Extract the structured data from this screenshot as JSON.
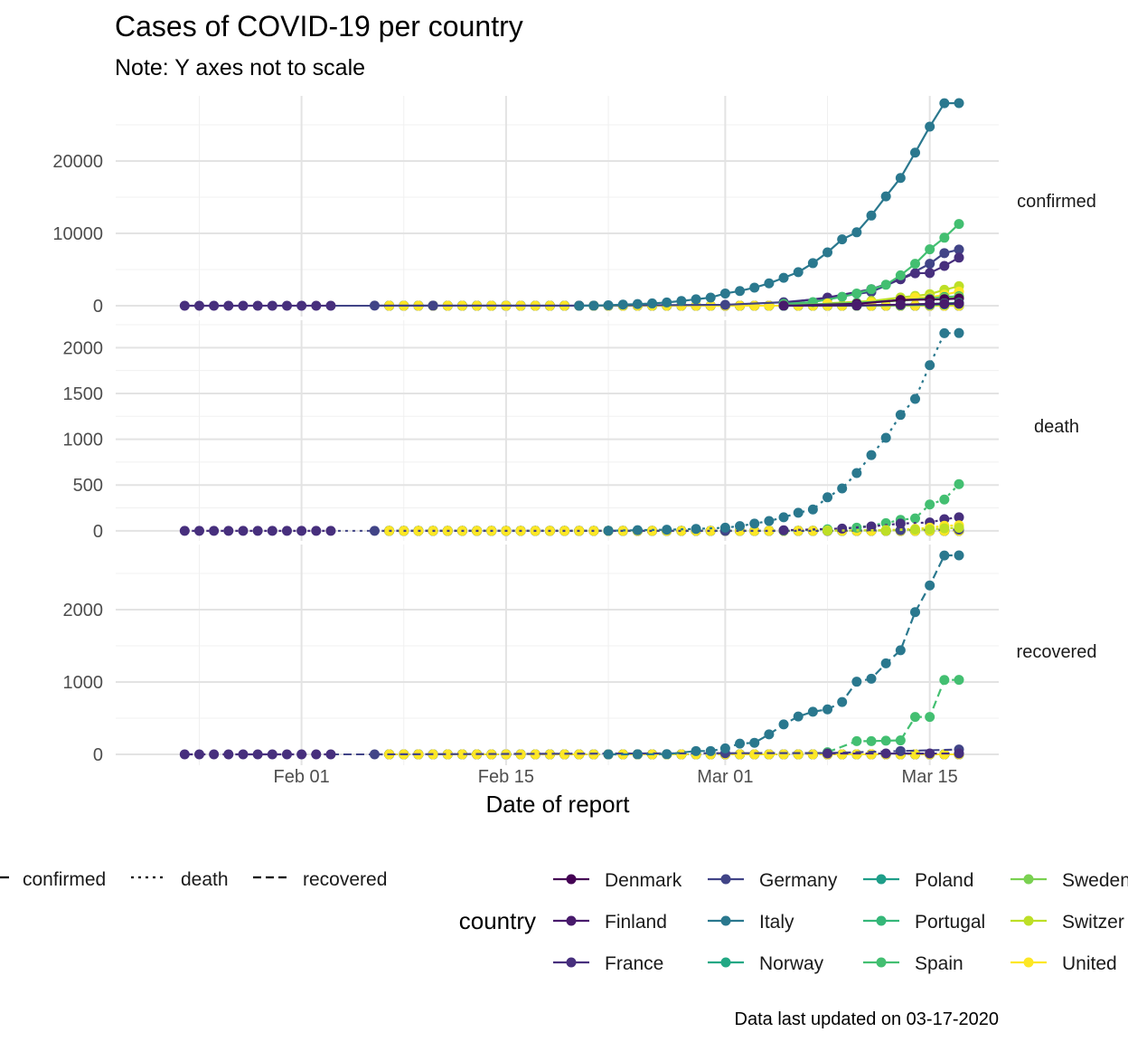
{
  "chart_data": {
    "type": "line",
    "title": "Cases of COVID-19 per country",
    "subtitle": "Note: Y axes not to scale",
    "xlabel": "Date of report",
    "caption": "Data last updated on 03-17-2020",
    "x_tick_labels": [
      {
        "date": "2020-02-01",
        "label": "Feb 01"
      },
      {
        "date": "2020-02-15",
        "label": "Feb 15"
      },
      {
        "date": "2020-03-01",
        "label": "Mar 01"
      },
      {
        "date": "2020-03-15",
        "label": "Mar 15"
      }
    ],
    "xlim": [
      "2020-01-22",
      "2020-03-17"
    ],
    "linetype_legend": [
      {
        "key": "confirmed",
        "label": "confirmed",
        "dash": "solid"
      },
      {
        "key": "death",
        "label": "death",
        "dash": "dotted"
      },
      {
        "key": "recovered",
        "label": "recovered",
        "dash": "dashed"
      }
    ],
    "color_legend_title": "country",
    "countries": [
      {
        "name": "Denmark",
        "color": "#440154"
      },
      {
        "name": "Finland",
        "color": "#481a6c"
      },
      {
        "name": "France",
        "color": "#472f7d"
      },
      {
        "name": "Germany",
        "color": "#414487"
      },
      {
        "name": "Italy",
        "color": "#2a788e"
      },
      {
        "name": "Norway",
        "color": "#22a884"
      },
      {
        "name": "Poland",
        "color": "#1f9e89"
      },
      {
        "name": "Portugal",
        "color": "#35b779"
      },
      {
        "name": "Spain",
        "color": "#43bf71"
      },
      {
        "name": "Sweden",
        "color": "#7ad151"
      },
      {
        "name": "Switzer",
        "color": "#bddf26"
      },
      {
        "name": "United",
        "color": "#fde725"
      }
    ],
    "facets": [
      {
        "key": "confirmed",
        "label": "confirmed",
        "dash": "solid",
        "ylim": [
          -1500,
          29000
        ],
        "y_ticks": [
          0,
          10000,
          20000
        ],
        "series": [
          {
            "country": "France",
            "x": [
              "2020-01-24",
              "2020-01-25",
              "2020-01-26",
              "2020-01-27",
              "2020-01-28",
              "2020-01-29",
              "2020-01-30",
              "2020-01-31",
              "2020-02-01",
              "2020-02-02",
              "2020-02-03"
            ],
            "y": [
              2,
              3,
              3,
              3,
              4,
              5,
              5,
              5,
              6,
              6,
              6
            ]
          },
          {
            "country": "Germany",
            "x": [
              "2020-02-06",
              "2020-02-10",
              "2020-02-20",
              "2020-03-01",
              "2020-03-05",
              "2020-03-08",
              "2020-03-11",
              "2020-03-13",
              "2020-03-15",
              "2020-03-16",
              "2020-03-17"
            ],
            "y": [
              12,
              14,
              16,
              130,
              482,
              1040,
              1908,
              3675,
              5795,
              7272,
              7760
            ]
          },
          {
            "country": "Italy",
            "x": [
              "2020-02-20",
              "2020-02-21",
              "2020-02-22",
              "2020-02-23",
              "2020-02-24",
              "2020-02-25",
              "2020-02-26",
              "2020-02-27",
              "2020-02-28",
              "2020-02-29",
              "2020-03-01",
              "2020-03-02",
              "2020-03-03",
              "2020-03-04",
              "2020-03-05",
              "2020-03-06",
              "2020-03-07",
              "2020-03-08",
              "2020-03-09",
              "2020-03-10",
              "2020-03-11",
              "2020-03-12",
              "2020-03-13",
              "2020-03-14",
              "2020-03-15",
              "2020-03-16",
              "2020-03-17"
            ],
            "y": [
              3,
              20,
              62,
              155,
              229,
              322,
              453,
              655,
              888,
              1128,
              1694,
              2036,
              2502,
              3089,
              3858,
              4636,
              5883,
              7375,
              9172,
              10149,
              12462,
              15113,
              17660,
              21157,
              24747,
              27980,
              28000
            ]
          },
          {
            "country": "France",
            "x": [
              "2020-03-05",
              "2020-03-08",
              "2020-03-11",
              "2020-03-13",
              "2020-03-14",
              "2020-03-15",
              "2020-03-16",
              "2020-03-17"
            ],
            "y": [
              377,
              1126,
              2284,
              3661,
              4480,
              4523,
              5500,
              6650
            ]
          },
          {
            "country": "Spain",
            "x": [
              "2020-03-05",
              "2020-03-07",
              "2020-03-09",
              "2020-03-10",
              "2020-03-11",
              "2020-03-12",
              "2020-03-13",
              "2020-03-14",
              "2020-03-15",
              "2020-03-16",
              "2020-03-17"
            ],
            "y": [
              261,
              500,
              1231,
              1695,
              2277,
              2900,
              4200,
              5800,
              7800,
              9400,
              11300
            ]
          },
          {
            "country": "Switzer",
            "x": [
              "2020-03-08",
              "2020-03-11",
              "2020-03-13",
              "2020-03-14",
              "2020-03-15",
              "2020-03-16",
              "2020-03-17"
            ],
            "y": [
              337,
              652,
              1139,
              1359,
              1600,
              2200,
              2700
            ]
          },
          {
            "country": "United",
            "x": [
              "2020-03-08",
              "2020-03-11",
              "2020-03-13",
              "2020-03-14",
              "2020-03-15",
              "2020-03-16",
              "2020-03-17"
            ],
            "y": [
              273,
              460,
              798,
              1140,
              1140,
              1543,
              1950
            ]
          },
          {
            "country": "Norway",
            "x": [
              "2020-03-05",
              "2020-03-10",
              "2020-03-13",
              "2020-03-15",
              "2020-03-16",
              "2020-03-17"
            ],
            "y": [
              50,
              400,
              750,
              1000,
              1200,
              1300
            ]
          },
          {
            "country": "Sweden",
            "x": [
              "2020-03-05",
              "2020-03-10",
              "2020-03-13",
              "2020-03-15",
              "2020-03-16",
              "2020-03-17"
            ],
            "y": [
              60,
              350,
              700,
              950,
              1100,
              1200
            ]
          },
          {
            "country": "Denmark",
            "x": [
              "2020-03-05",
              "2020-03-10",
              "2020-03-13",
              "2020-03-15",
              "2020-03-16",
              "2020-03-17"
            ],
            "y": [
              20,
              260,
              800,
              860,
              900,
              1000
            ]
          },
          {
            "country": "Portugal",
            "x": [
              "2020-03-05",
              "2020-03-10",
              "2020-03-13",
              "2020-03-15",
              "2020-03-16",
              "2020-03-17"
            ],
            "y": [
              5,
              40,
              120,
              250,
              330,
              400
            ]
          },
          {
            "country": "Poland",
            "x": [
              "2020-03-05",
              "2020-03-10",
              "2020-03-13",
              "2020-03-15",
              "2020-03-16",
              "2020-03-17"
            ],
            "y": [
              1,
              20,
              70,
              120,
              180,
              250
            ]
          },
          {
            "country": "Finland",
            "x": [
              "2020-03-05",
              "2020-03-10",
              "2020-03-13",
              "2020-03-15",
              "2020-03-16",
              "2020-03-17"
            ],
            "y": [
              10,
              40,
              150,
              240,
              270,
              320
            ]
          }
        ]
      },
      {
        "key": "death",
        "label": "death",
        "dash": "dotted",
        "ylim": [
          -110,
          2300
        ],
        "y_ticks": [
          0,
          500,
          1000,
          1500,
          2000
        ],
        "series": [
          {
            "country": "France",
            "x": [
              "2020-01-24",
              "2020-01-25",
              "2020-01-26",
              "2020-01-27",
              "2020-01-28",
              "2020-01-29",
              "2020-01-30",
              "2020-01-31",
              "2020-02-01",
              "2020-02-02",
              "2020-02-03"
            ],
            "y": [
              0,
              0,
              0,
              0,
              0,
              0,
              0,
              0,
              0,
              0,
              0
            ]
          },
          {
            "country": "Germany",
            "x": [
              "2020-02-06",
              "2020-03-01",
              "2020-03-08",
              "2020-03-13",
              "2020-03-17"
            ],
            "y": [
              0,
              0,
              0,
              7,
              13
            ]
          },
          {
            "country": "Italy",
            "x": [
              "2020-02-22",
              "2020-02-24",
              "2020-02-26",
              "2020-02-28",
              "2020-03-01",
              "2020-03-02",
              "2020-03-03",
              "2020-03-04",
              "2020-03-05",
              "2020-03-06",
              "2020-03-07",
              "2020-03-08",
              "2020-03-09",
              "2020-03-10",
              "2020-03-11",
              "2020-03-12",
              "2020-03-13",
              "2020-03-14",
              "2020-03-15",
              "2020-03-16",
              "2020-03-17"
            ],
            "y": [
              1,
              7,
              12,
              21,
              34,
              52,
              79,
              107,
              148,
              197,
              233,
              366,
              463,
              631,
              827,
              1016,
              1266,
              1441,
              1809,
              2158,
              2160
            ]
          },
          {
            "country": "Spain",
            "x": [
              "2020-03-05",
              "2020-03-08",
              "2020-03-10",
              "2020-03-12",
              "2020-03-13",
              "2020-03-14",
              "2020-03-15",
              "2020-03-16",
              "2020-03-17"
            ],
            "y": [
              3,
              17,
              35,
              84,
              120,
              136,
              288,
              342,
              510
            ]
          },
          {
            "country": "France",
            "x": [
              "2020-03-05",
              "2020-03-09",
              "2020-03-11",
              "2020-03-13",
              "2020-03-15",
              "2020-03-16",
              "2020-03-17"
            ],
            "y": [
              6,
              25,
              48,
              79,
              91,
              127,
              148
            ]
          },
          {
            "country": "United",
            "x": [
              "2020-03-08",
              "2020-03-12",
              "2020-03-14",
              "2020-03-15",
              "2020-03-16",
              "2020-03-17"
            ],
            "y": [
              3,
              8,
              21,
              35,
              55,
              60
            ]
          },
          {
            "country": "Switzer",
            "x": [
              "2020-03-08",
              "2020-03-12",
              "2020-03-14",
              "2020-03-15",
              "2020-03-16",
              "2020-03-17"
            ],
            "y": [
              2,
              4,
              13,
              14,
              27,
              33
            ]
          }
        ]
      },
      {
        "key": "recovered",
        "label": "recovered",
        "dash": "dashed",
        "ylim": [
          -150,
          2900
        ],
        "y_ticks": [
          0,
          1000,
          2000
        ],
        "series": [
          {
            "country": "France",
            "x": [
              "2020-01-24",
              "2020-01-25",
              "2020-01-26",
              "2020-01-27",
              "2020-01-28",
              "2020-01-29",
              "2020-01-30",
              "2020-01-31",
              "2020-02-01",
              "2020-02-02",
              "2020-02-03"
            ],
            "y": [
              0,
              0,
              0,
              0,
              0,
              0,
              0,
              0,
              0,
              0,
              0
            ]
          },
          {
            "country": "Germany",
            "x": [
              "2020-02-06",
              "2020-03-01",
              "2020-03-08",
              "2020-03-13",
              "2020-03-17"
            ],
            "y": [
              0,
              16,
              18,
              46,
              67
            ]
          },
          {
            "country": "Italy",
            "x": [
              "2020-02-22",
              "2020-02-24",
              "2020-02-26",
              "2020-02-28",
              "2020-02-29",
              "2020-03-01",
              "2020-03-02",
              "2020-03-03",
              "2020-03-04",
              "2020-03-05",
              "2020-03-06",
              "2020-03-07",
              "2020-03-08",
              "2020-03-09",
              "2020-03-10",
              "2020-03-11",
              "2020-03-12",
              "2020-03-13",
              "2020-03-14",
              "2020-03-15",
              "2020-03-16",
              "2020-03-17"
            ],
            "y": [
              0,
              1,
              3,
              46,
              46,
              83,
              149,
              160,
              276,
              414,
              523,
              589,
              622,
              724,
              1004,
              1045,
              1258,
              1439,
              1966,
              2335,
              2749,
              2750
            ]
          },
          {
            "country": "Spain",
            "x": [
              "2020-03-08",
              "2020-03-10",
              "2020-03-11",
              "2020-03-12",
              "2020-03-13",
              "2020-03-14",
              "2020-03-15",
              "2020-03-16",
              "2020-03-17"
            ],
            "y": [
              30,
              183,
              183,
              189,
              193,
              517,
              517,
              1028,
              1030
            ]
          },
          {
            "country": "France",
            "x": [
              "2020-03-08",
              "2020-03-12",
              "2020-03-15",
              "2020-03-17"
            ],
            "y": [
              12,
              12,
              12,
              12
            ]
          }
        ]
      }
    ]
  }
}
